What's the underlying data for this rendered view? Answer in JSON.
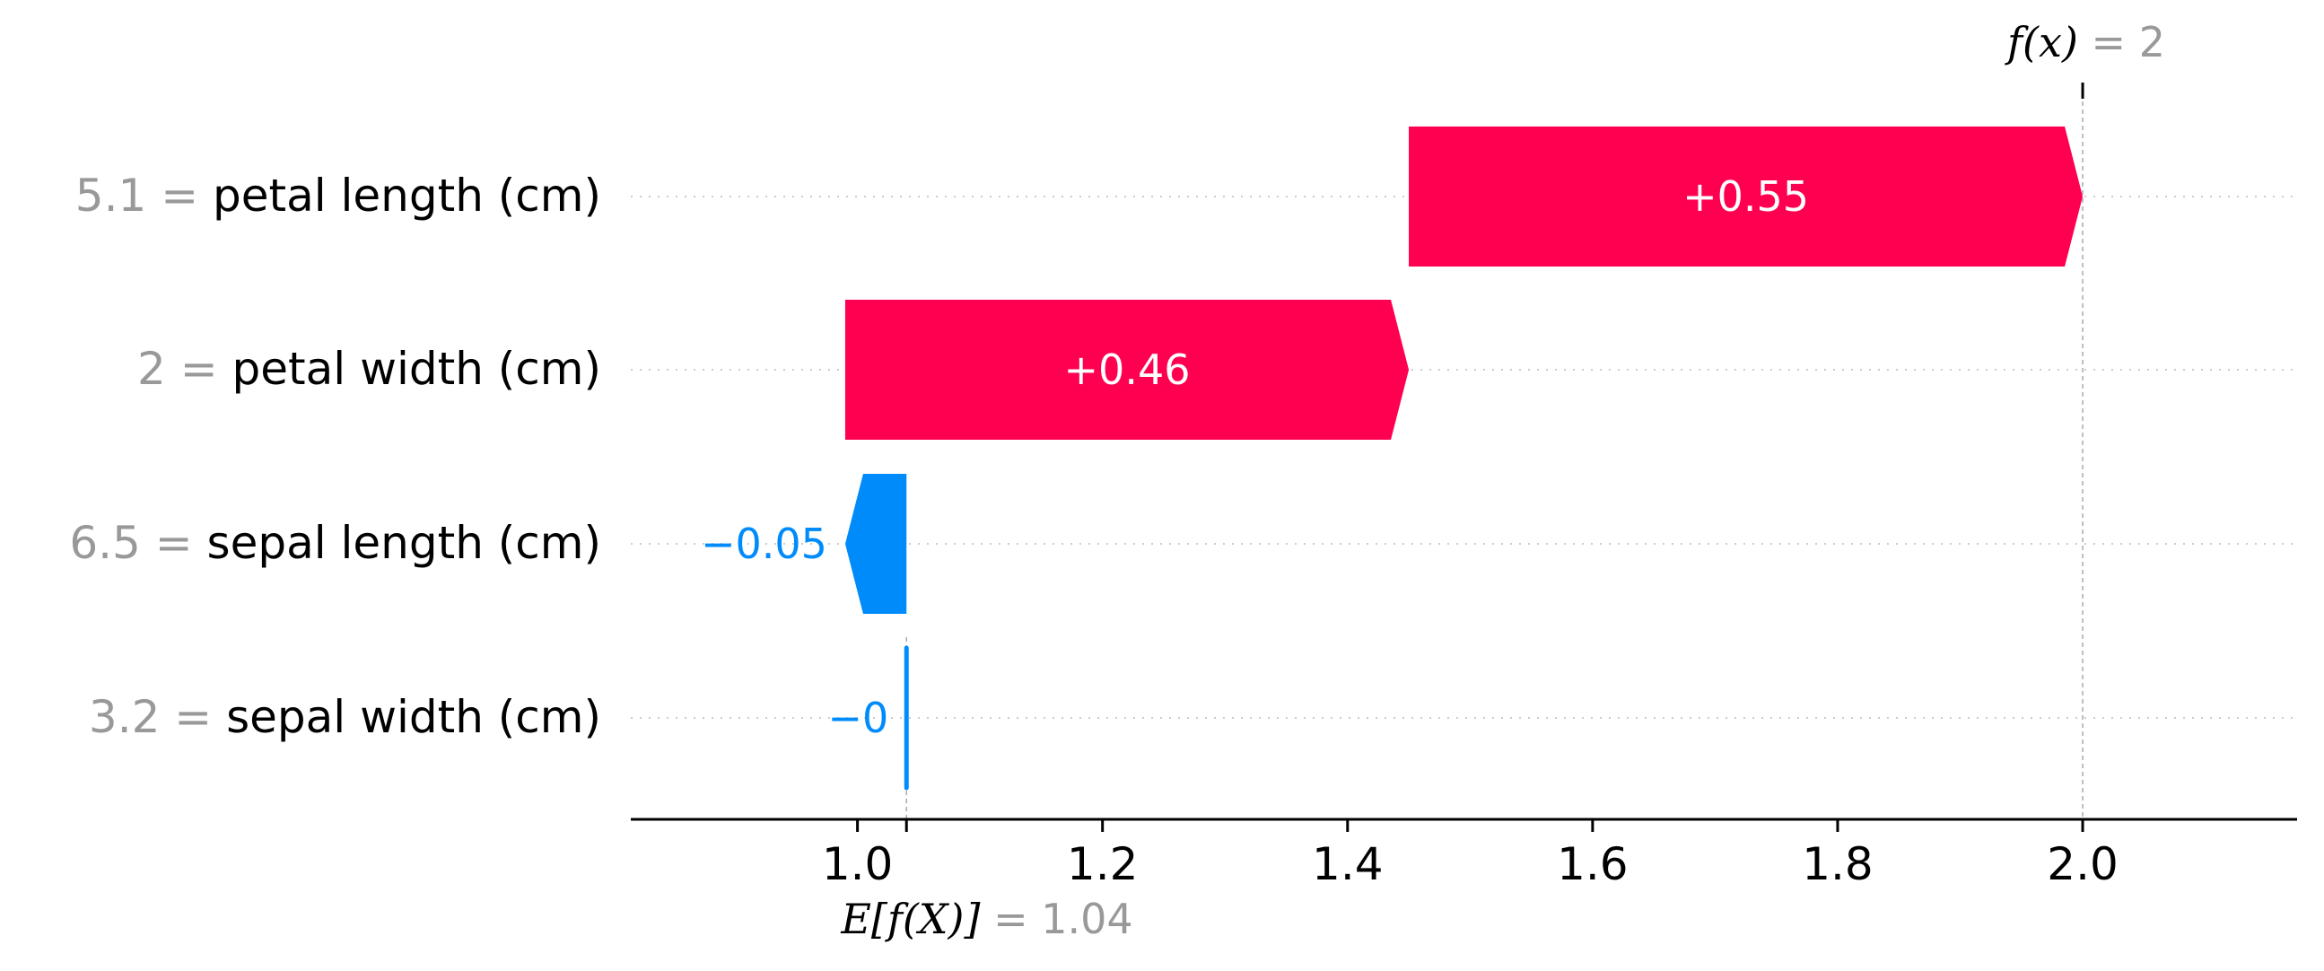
{
  "chart_data": {
    "type": "waterfall",
    "base_value": 1.04,
    "output_value": 2.0,
    "features": [
      {
        "value_text": "5.1",
        "name": "petal length (cm)",
        "contribution": 0.55,
        "label": "+0.55"
      },
      {
        "value_text": "2",
        "name": "petal width (cm)",
        "contribution": 0.46,
        "label": "+0.46"
      },
      {
        "value_text": "6.5",
        "name": "sepal length (cm)",
        "contribution": -0.05,
        "label": "−0.05"
      },
      {
        "value_text": "3.2",
        "name": "sepal width (cm)",
        "contribution": -0.002,
        "label": "−0"
      }
    ],
    "x_ticks": [
      1.0,
      1.2,
      1.4,
      1.6,
      1.8,
      2.0
    ],
    "x_tick_labels": [
      "1.0",
      "1.2",
      "1.4",
      "1.6",
      "1.8",
      "2.0"
    ],
    "xlim": [
      0.815,
      2.175
    ],
    "fx_label": {
      "expr": "f(x)",
      "eq": " = 2"
    },
    "efx_label": {
      "expr": "E[f(X)]",
      "eq": " = 1.04"
    },
    "colors": {
      "positive": "#ff0051",
      "negative": "#008bfb",
      "grid": "#cccccc"
    },
    "equals_sign": " = "
  }
}
